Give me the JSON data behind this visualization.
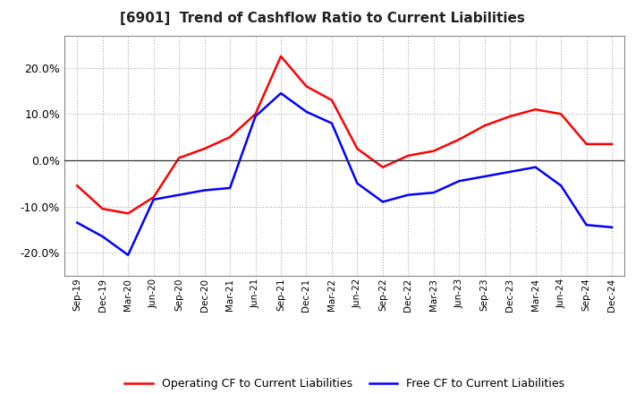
{
  "title": "[6901]  Trend of Cashflow Ratio to Current Liabilities",
  "x_labels": [
    "Sep-19",
    "Dec-19",
    "Mar-20",
    "Jun-20",
    "Sep-20",
    "Dec-20",
    "Mar-21",
    "Jun-21",
    "Sep-21",
    "Dec-21",
    "Mar-22",
    "Jun-22",
    "Sep-22",
    "Dec-22",
    "Mar-23",
    "Jun-23",
    "Sep-23",
    "Dec-23",
    "Mar-24",
    "Jun-24",
    "Sep-24",
    "Dec-24"
  ],
  "operating_cf": [
    -5.5,
    -10.5,
    -11.5,
    -8.0,
    0.5,
    2.5,
    5.0,
    10.0,
    22.5,
    16.0,
    13.0,
    2.5,
    -1.5,
    1.0,
    2.0,
    4.5,
    7.5,
    9.5,
    11.0,
    10.0,
    3.5,
    3.5
  ],
  "free_cf": [
    -13.5,
    -16.5,
    -20.5,
    -8.5,
    -7.5,
    -6.5,
    -6.0,
    9.5,
    14.5,
    10.5,
    8.0,
    -5.0,
    -9.0,
    -7.5,
    -7.0,
    -4.5,
    -3.5,
    -2.5,
    -1.5,
    -5.5,
    -14.0,
    -14.5
  ],
  "operating_color": "#ff0000",
  "free_color": "#0000ff",
  "ylim": [
    -25,
    27
  ],
  "yticks": [
    -20.0,
    -10.0,
    0.0,
    10.0,
    20.0
  ],
  "background_color": "#ffffff",
  "plot_bg_color": "#ffffff",
  "grid_color": "#999999",
  "legend_op": "Operating CF to Current Liabilities",
  "legend_free": "Free CF to Current Liabilities",
  "line_width": 1.8
}
